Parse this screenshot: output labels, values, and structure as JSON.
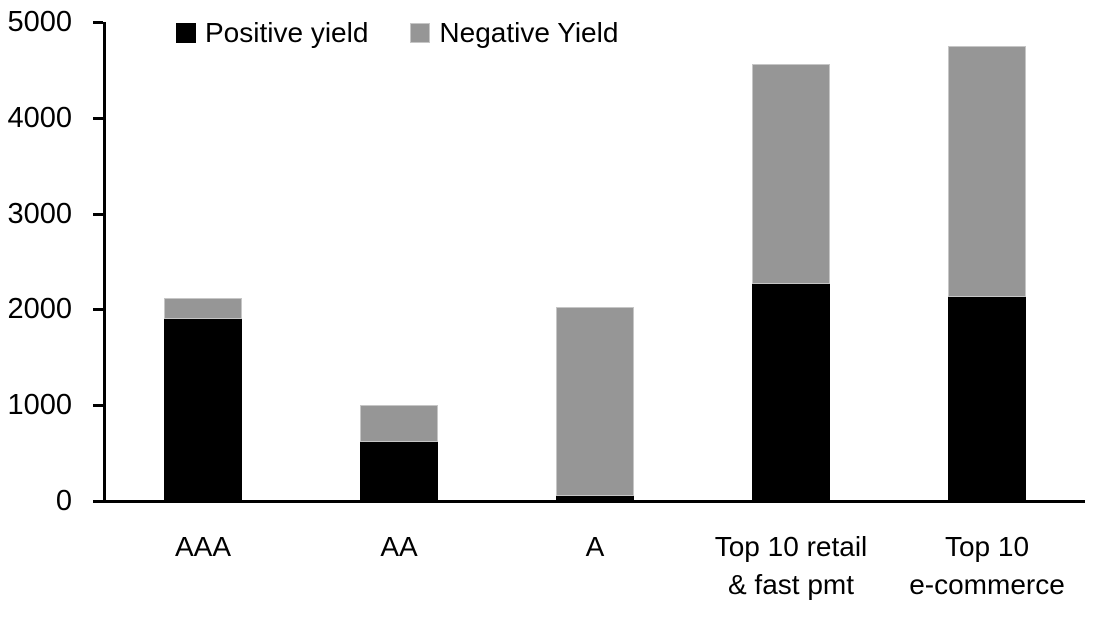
{
  "chart_data": {
    "type": "bar",
    "subtype": "stacked",
    "title": "",
    "xlabel": "",
    "ylabel": "",
    "categories": [
      "AAA",
      "AA",
      "A",
      "Top 10 retail\n& fast pmt",
      "Top 10\ne-commerce"
    ],
    "series": [
      {
        "name": "Positive yield",
        "color": "#000000",
        "values": [
          1900,
          620,
          50,
          2270,
          2130
        ]
      },
      {
        "name": "Negative Yield",
        "color": "#969696",
        "values": [
          220,
          380,
          1980,
          2290,
          2620
        ]
      }
    ],
    "totals": [
      2120,
      1000,
      2030,
      4560,
      4750
    ],
    "ylim": [
      0,
      5000
    ],
    "yticks": [
      0,
      1000,
      2000,
      3000,
      4000,
      5000
    ],
    "grid": false,
    "legend_position": "top-inside",
    "axis_color": "#000000",
    "background_color": "#ffffff"
  }
}
